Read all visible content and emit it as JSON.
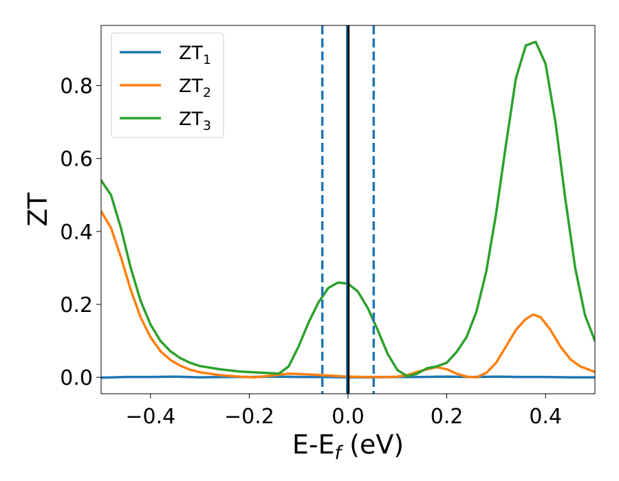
{
  "chart_data": {
    "type": "line",
    "xlabel_main": "E-E",
    "xlabel_sub": "f",
    "xlabel_unit": " (eV)",
    "ylabel": "ZT",
    "xlim": [
      -0.5,
      0.5
    ],
    "ylim": [
      -0.045,
      0.965
    ],
    "xticks": [
      -0.4,
      -0.2,
      0.0,
      0.2,
      0.4
    ],
    "xtick_labels": [
      "−0.4",
      "−0.2",
      "0.0",
      "0.2",
      "0.4"
    ],
    "yticks": [
      0.0,
      0.2,
      0.4,
      0.6,
      0.8
    ],
    "ytick_labels": [
      "0.0",
      "0.2",
      "0.4",
      "0.6",
      "0.8"
    ],
    "legend_position": "top-left",
    "series": [
      {
        "name": "ZT",
        "name_sub": "1",
        "color": "#1f77b4",
        "x": [
          -0.5,
          -0.45,
          -0.4,
          -0.35,
          -0.3,
          -0.25,
          -0.2,
          -0.15,
          -0.1,
          -0.05,
          0.0,
          0.05,
          0.1,
          0.15,
          0.2,
          0.25,
          0.3,
          0.35,
          0.4,
          0.45,
          0.5
        ],
        "y": [
          -0.001,
          0.001,
          0.001,
          0.002,
          0.0,
          0.001,
          0.001,
          0.002,
          0.001,
          0.001,
          0.0,
          0.0,
          0.001,
          0.001,
          0.002,
          0.001,
          0.002,
          0.001,
          0.001,
          0.0,
          0.0
        ]
      },
      {
        "name": "ZT",
        "name_sub": "2",
        "color": "#ff7f0e",
        "x": [
          -0.5,
          -0.48,
          -0.46,
          -0.44,
          -0.42,
          -0.4,
          -0.38,
          -0.36,
          -0.34,
          -0.32,
          -0.3,
          -0.26,
          -0.22,
          -0.19,
          -0.16,
          -0.12,
          -0.08,
          -0.04,
          0.0,
          0.04,
          0.08,
          0.1,
          0.12,
          0.14,
          0.16,
          0.18,
          0.2,
          0.22,
          0.24,
          0.26,
          0.28,
          0.3,
          0.32,
          0.34,
          0.36,
          0.375,
          0.39,
          0.41,
          0.43,
          0.45,
          0.47,
          0.5
        ],
        "y": [
          0.455,
          0.41,
          0.33,
          0.24,
          0.165,
          0.11,
          0.072,
          0.048,
          0.032,
          0.021,
          0.014,
          0.006,
          0.002,
          0.0,
          0.004,
          0.01,
          0.008,
          0.005,
          0.002,
          0.001,
          0.001,
          0.002,
          0.006,
          0.015,
          0.022,
          0.028,
          0.022,
          0.01,
          0.002,
          0.0,
          0.012,
          0.04,
          0.085,
          0.13,
          0.16,
          0.172,
          0.165,
          0.13,
          0.085,
          0.05,
          0.03,
          0.015
        ]
      },
      {
        "name": "ZT",
        "name_sub": "3",
        "color": "#2ca02c",
        "x": [
          -0.5,
          -0.48,
          -0.46,
          -0.44,
          -0.42,
          -0.4,
          -0.38,
          -0.36,
          -0.34,
          -0.32,
          -0.3,
          -0.26,
          -0.22,
          -0.18,
          -0.14,
          -0.12,
          -0.1,
          -0.08,
          -0.06,
          -0.04,
          -0.02,
          0.0,
          0.02,
          0.04,
          0.06,
          0.08,
          0.1,
          0.12,
          0.14,
          0.16,
          0.18,
          0.2,
          0.22,
          0.24,
          0.26,
          0.28,
          0.3,
          0.32,
          0.34,
          0.36,
          0.38,
          0.4,
          0.42,
          0.44,
          0.46,
          0.48,
          0.5
        ],
        "y": [
          0.54,
          0.5,
          0.41,
          0.3,
          0.21,
          0.145,
          0.1,
          0.072,
          0.053,
          0.04,
          0.031,
          0.022,
          0.016,
          0.013,
          0.01,
          0.03,
          0.085,
          0.15,
          0.205,
          0.245,
          0.26,
          0.257,
          0.235,
          0.19,
          0.13,
          0.065,
          0.02,
          0.003,
          0.01,
          0.025,
          0.03,
          0.04,
          0.07,
          0.11,
          0.18,
          0.29,
          0.45,
          0.64,
          0.82,
          0.91,
          0.92,
          0.86,
          0.7,
          0.49,
          0.3,
          0.17,
          0.1
        ]
      }
    ],
    "vlines": [
      {
        "x": -0.052,
        "style": "dashed",
        "color": "#1f77b4"
      },
      {
        "x": 0.052,
        "style": "dashed",
        "color": "#1f77b4"
      },
      {
        "x": -0.002,
        "style": "solid",
        "color": "#1f77b4"
      },
      {
        "x": 0.001,
        "style": "solid",
        "color": "#000000"
      }
    ]
  }
}
